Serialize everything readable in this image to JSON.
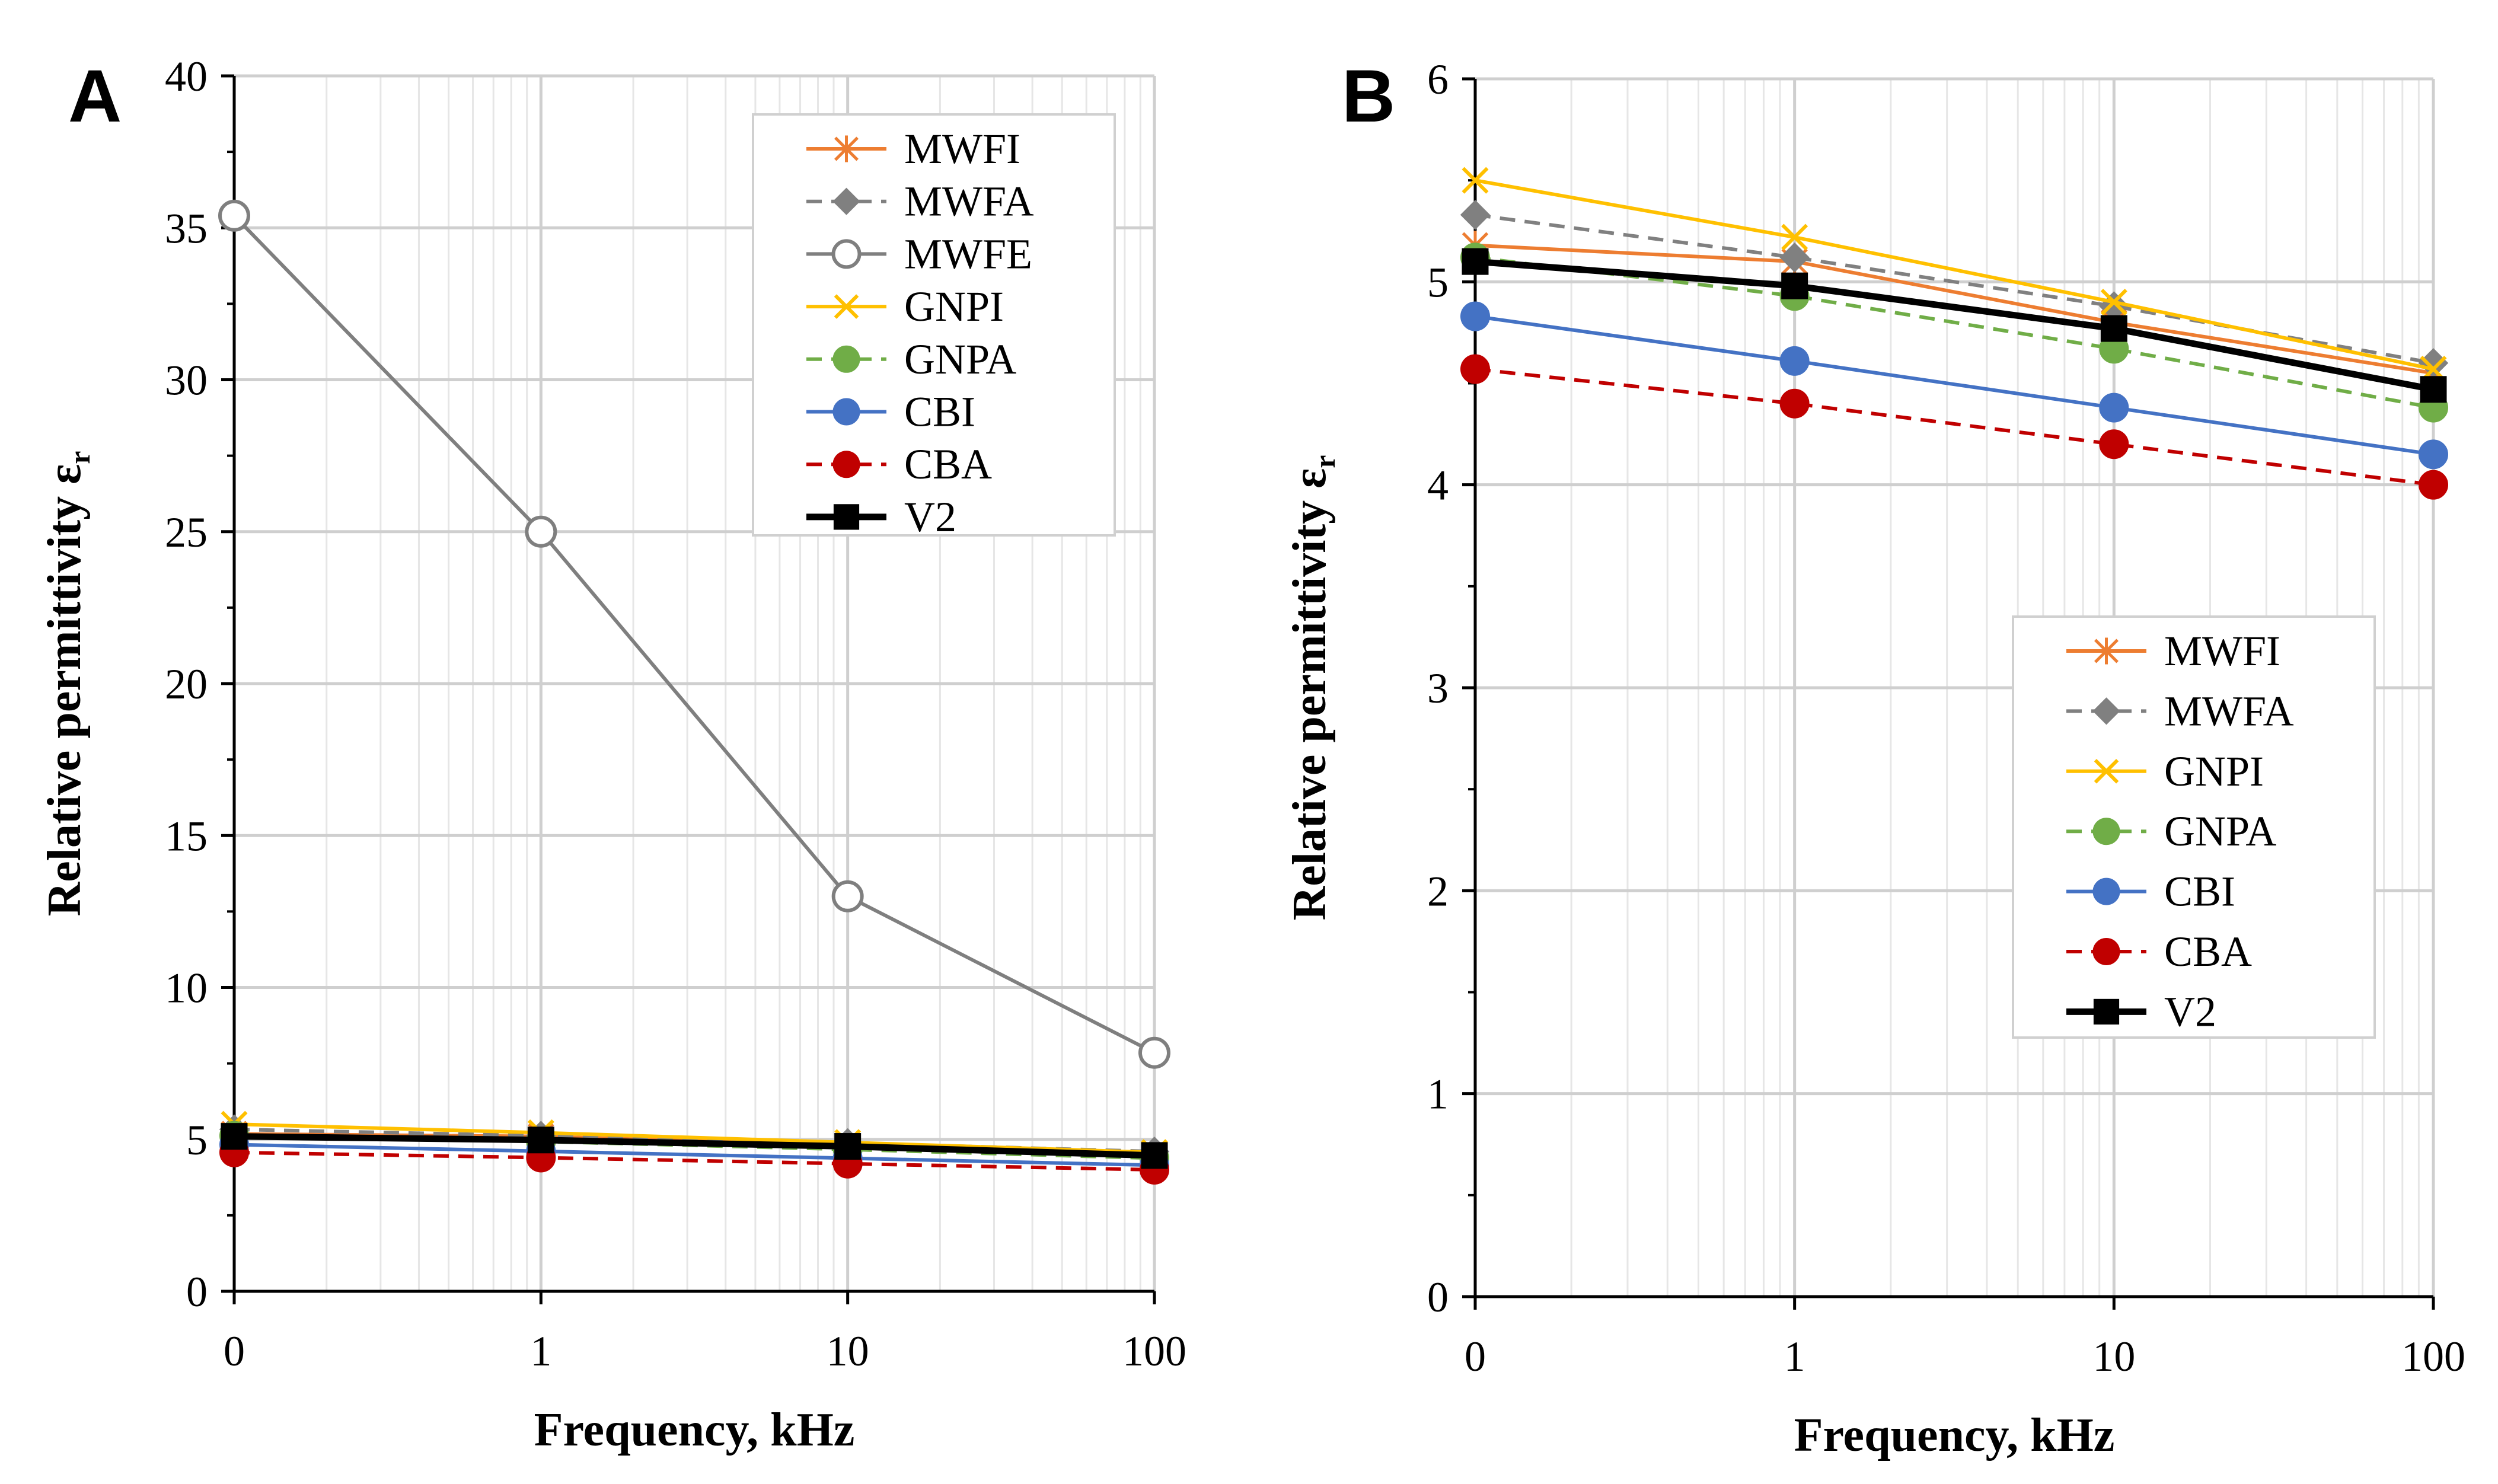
{
  "colors": {
    "MWFI": "#ED7D31",
    "MWFA": "#808080",
    "MWFE": "#7F7F7F",
    "GNPI": "#FFC000",
    "GNPA": "#70AD47",
    "CBI": "#4472C4",
    "CBA": "#C00000",
    "V2": "#000000"
  },
  "chart_data": [
    {
      "type": "line",
      "panel_label": "A",
      "title": "",
      "xlabel": "Frequency, kHz",
      "ylabel_main": "Relative permittivity ε",
      "ylabel_sub": "r",
      "x_scale": "log",
      "x": [
        0.1,
        1,
        10,
        100
      ],
      "x_tick_labels": [
        "0",
        "1",
        "10",
        "100"
      ],
      "y_ticks": [
        0,
        5,
        10,
        15,
        20,
        25,
        30,
        35,
        40
      ],
      "y_tick_labels": [
        "0",
        "5",
        "10",
        "15",
        "20",
        "25",
        "30",
        "35",
        "40"
      ],
      "ylim": [
        0,
        40
      ],
      "grid": true,
      "legend_position": "top-right",
      "series": [
        {
          "name": "MWFI",
          "values": [
            5.18,
            5.1,
            4.8,
            4.55
          ],
          "marker": "asterisk",
          "dash": false
        },
        {
          "name": "MWFA",
          "values": [
            5.33,
            5.12,
            4.88,
            4.6
          ],
          "marker": "diamond",
          "dash": true
        },
        {
          "name": "MWFE",
          "values": [
            35.4,
            25.0,
            13.0,
            7.85
          ],
          "marker": "hollow-circle",
          "dash": false
        },
        {
          "name": "GNPI",
          "values": [
            5.5,
            5.22,
            4.9,
            4.57
          ],
          "marker": "x",
          "dash": false
        },
        {
          "name": "GNPA",
          "values": [
            5.12,
            4.93,
            4.67,
            4.38
          ],
          "marker": "circle",
          "dash": true
        },
        {
          "name": "CBI",
          "values": [
            4.83,
            4.61,
            4.38,
            4.15
          ],
          "marker": "circle",
          "dash": false
        },
        {
          "name": "CBA",
          "values": [
            4.57,
            4.4,
            4.2,
            4.0
          ],
          "marker": "circle",
          "dash": true
        },
        {
          "name": "V2",
          "values": [
            5.1,
            4.98,
            4.77,
            4.47
          ],
          "marker": "square",
          "dash": false
        }
      ]
    },
    {
      "type": "line",
      "panel_label": "B",
      "title": "",
      "xlabel": "Frequency, kHz",
      "ylabel_main": "Relative permittivity ε",
      "ylabel_sub": "r",
      "x_scale": "log",
      "x": [
        0.1,
        1,
        10,
        100
      ],
      "x_tick_labels": [
        "0",
        "1",
        "10",
        "100"
      ],
      "y_ticks": [
        0,
        1,
        2,
        3,
        4,
        5,
        6
      ],
      "y_tick_labels": [
        "0",
        "1",
        "2",
        "3",
        "4",
        "5",
        "6"
      ],
      "ylim": [
        0,
        6
      ],
      "grid": true,
      "legend_position": "bottom-right",
      "series": [
        {
          "name": "MWFI",
          "values": [
            5.18,
            5.1,
            4.8,
            4.55
          ],
          "marker": "asterisk",
          "dash": false
        },
        {
          "name": "MWFA",
          "values": [
            5.33,
            5.12,
            4.88,
            4.6
          ],
          "marker": "diamond",
          "dash": true
        },
        {
          "name": "GNPI",
          "values": [
            5.5,
            5.22,
            4.9,
            4.57
          ],
          "marker": "x",
          "dash": false
        },
        {
          "name": "GNPA",
          "values": [
            5.12,
            4.93,
            4.67,
            4.38
          ],
          "marker": "circle",
          "dash": true
        },
        {
          "name": "CBI",
          "values": [
            4.83,
            4.61,
            4.38,
            4.15
          ],
          "marker": "circle",
          "dash": false
        },
        {
          "name": "CBA",
          "values": [
            4.57,
            4.4,
            4.2,
            4.0
          ],
          "marker": "circle",
          "dash": true
        },
        {
          "name": "V2",
          "values": [
            5.1,
            4.98,
            4.77,
            4.47
          ],
          "marker": "square",
          "dash": false
        }
      ]
    }
  ]
}
